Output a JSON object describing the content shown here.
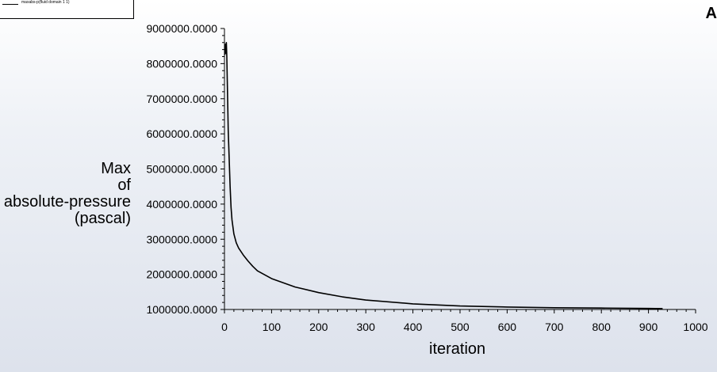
{
  "legend": {
    "label": "maxabs-p(fluid domain 1 1)"
  },
  "corner_text": "A",
  "chart_data": {
    "type": "line",
    "title": "",
    "xlabel": "iteration",
    "ylabel_lines": [
      "Max",
      "of",
      "absolute-pressure",
      "(pascal)"
    ],
    "xlim": [
      0,
      1000
    ],
    "ylim": [
      1000000,
      9000000
    ],
    "x_ticks": [
      0,
      100,
      200,
      300,
      400,
      500,
      600,
      700,
      800,
      900,
      1000
    ],
    "x_tick_labels": [
      "0",
      "100",
      "200",
      "300",
      "400",
      "500",
      "600",
      "700",
      "800",
      "900",
      "1000"
    ],
    "y_ticks": [
      1000000,
      2000000,
      3000000,
      4000000,
      5000000,
      6000000,
      7000000,
      8000000,
      9000000
    ],
    "y_tick_labels": [
      "1000000.0000",
      "2000000.0000",
      "3000000.0000",
      "4000000.0000",
      "5000000.0000",
      "6000000.0000",
      "7000000.0000",
      "8000000.0000",
      "9000000.0000"
    ],
    "grid": false,
    "series": [
      {
        "name": "maxabs-p(fluid domain 1 1)",
        "color": "#000000",
        "x": [
          1,
          2,
          3,
          4,
          5,
          6,
          7,
          8,
          10,
          12,
          14,
          16,
          20,
          25,
          30,
          40,
          50,
          60,
          70,
          100,
          150,
          200,
          250,
          300,
          400,
          500,
          600,
          700,
          800,
          900,
          930
        ],
        "y": [
          8250000,
          8550000,
          8300000,
          8600000,
          8200000,
          7500000,
          6800000,
          6100000,
          5300000,
          4500000,
          3900000,
          3550000,
          3150000,
          2900000,
          2750000,
          2550000,
          2380000,
          2230000,
          2100000,
          1880000,
          1640000,
          1480000,
          1360000,
          1270000,
          1160000,
          1100000,
          1070000,
          1050000,
          1040000,
          1030000,
          1025000
        ]
      }
    ]
  }
}
